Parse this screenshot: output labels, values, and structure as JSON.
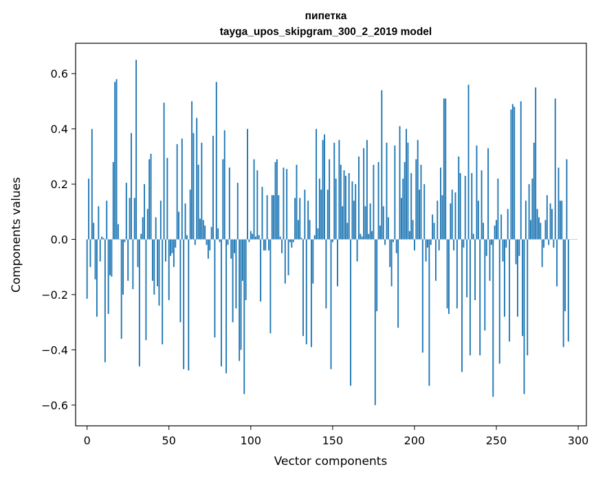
{
  "chart_data": {
    "type": "bar",
    "title": "пипетка",
    "subtitle": "tayga_upos_skipgram_300_2_2019 model",
    "xlabel": "Vector components",
    "ylabel": "Components values",
    "xlim": [
      -7,
      305
    ],
    "ylim": [
      -0.675,
      0.71
    ],
    "xticks": [
      0,
      50,
      100,
      150,
      200,
      250,
      300
    ],
    "xtick_labels": [
      "0",
      "50",
      "100",
      "150",
      "200",
      "250",
      "300"
    ],
    "yticks": [
      -0.6,
      -0.4,
      -0.2,
      0.0,
      0.2,
      0.4,
      0.6
    ],
    "ytick_labels": [
      "−0.6",
      "−0.4",
      "−0.2",
      "0.0",
      "0.2",
      "0.4",
      "0.6"
    ],
    "grid": false,
    "bar_color": "#1f77b4",
    "x": "integers 0 to 299 (component index)",
    "values": [
      -0.215,
      0.22,
      -0.1,
      0.4,
      0.06,
      -0.145,
      -0.28,
      0.12,
      -0.08,
      0.01,
      0.005,
      -0.445,
      0.14,
      -0.27,
      -0.13,
      -0.135,
      0.28,
      0.57,
      0.58,
      0.055,
      0.0,
      -0.36,
      -0.2,
      -0.01,
      0.205,
      -0.15,
      0.15,
      0.385,
      -0.18,
      0.15,
      0.65,
      -0.1,
      -0.46,
      0.02,
      0.08,
      0.2,
      -0.365,
      0.11,
      0.29,
      0.31,
      -0.15,
      -0.2,
      0.08,
      -0.17,
      -0.24,
      0.14,
      -0.38,
      0.495,
      -0.08,
      0.295,
      -0.22,
      -0.06,
      -0.05,
      -0.1,
      -0.03,
      0.345,
      0.1,
      -0.3,
      0.365,
      -0.47,
      0.13,
      0.015,
      -0.475,
      0.18,
      0.5,
      0.385,
      -0.02,
      0.44,
      0.27,
      0.075,
      0.35,
      0.07,
      0.05,
      -0.02,
      -0.07,
      -0.04,
      0.045,
      0.375,
      -0.355,
      0.57,
      0.04,
      -0.01,
      -0.46,
      0.29,
      0.395,
      -0.485,
      -0.02,
      0.26,
      -0.07,
      -0.3,
      -0.05,
      -0.25,
      0.205,
      -0.44,
      -0.4,
      -0.15,
      -0.56,
      -0.22,
      0.4,
      -0.01,
      0.03,
      0.02,
      0.29,
      0.01,
      0.25,
      0.015,
      -0.225,
      0.19,
      -0.04,
      -0.04,
      0.16,
      -0.04,
      -0.34,
      0.16,
      0.16,
      0.28,
      0.29,
      0.16,
      0.01,
      -0.05,
      0.26,
      -0.16,
      0.255,
      -0.13,
      -0.01,
      -0.03,
      -0.01,
      0.15,
      0.27,
      0.07,
      0.15,
      0.005,
      -0.35,
      0.18,
      -0.38,
      0.14,
      0.07,
      -0.39,
      -0.16,
      0.015,
      0.4,
      0.04,
      0.22,
      0.18,
      0.36,
      0.38,
      -0.25,
      0.18,
      0.29,
      -0.47,
      -0.01,
      0.35,
      0.22,
      -0.17,
      0.36,
      0.27,
      0.12,
      0.25,
      0.23,
      0.06,
      0.24,
      -0.53,
      0.21,
      0.14,
      0.2,
      -0.08,
      0.3,
      0.02,
      0.01,
      0.33,
      0.12,
      0.36,
      0.02,
      0.13,
      0.03,
      0.27,
      -0.6,
      -0.26,
      0.28,
      0.05,
      0.54,
      0.12,
      -0.02,
      0.35,
      0.08,
      -0.1,
      -0.17,
      -0.01,
      0.34,
      -0.05,
      -0.32,
      0.41,
      0.15,
      0.22,
      0.28,
      0.4,
      0.35,
      0.03,
      0.24,
      0.07,
      -0.04,
      0.29,
      0.36,
      0.18,
      0.27,
      -0.41,
      0.2,
      -0.08,
      -0.03,
      -0.53,
      -0.02,
      0.09,
      0.06,
      -0.15,
      0.14,
      -0.04,
      0.26,
      0.16,
      0.51,
      0.51,
      -0.25,
      -0.27,
      0.13,
      0.18,
      -0.04,
      0.17,
      -0.25,
      0.3,
      0.24,
      -0.48,
      -0.03,
      0.23,
      -0.21,
      0.56,
      -0.42,
      0.24,
      0.02,
      -0.22,
      0.34,
      0.14,
      -0.42,
      0.25,
      0.06,
      -0.33,
      -0.06,
      0.33,
      -0.15,
      -0.02,
      -0.57,
      0.05,
      0.07,
      0.22,
      -0.45,
      0.09,
      -0.08,
      -0.28,
      -0.03,
      0.11,
      -0.37,
      0.47,
      0.49,
      0.48,
      -0.09,
      -0.28,
      -0.06,
      0.5,
      -0.35,
      -0.56,
      0.14,
      -0.42,
      0.2,
      0.07,
      0.22,
      0.35,
      0.55,
      0.11,
      0.08,
      0.06,
      -0.1,
      -0.03,
      0.07,
      0.16,
      -0.02,
      0.13,
      0.11,
      -0.03,
      0.51,
      -0.17,
      0.26,
      0.14,
      0.14,
      -0.39,
      -0.26,
      0.29,
      -0.37,
      0.0,
      0.0,
      0.0,
      0.0,
      0.0
    ]
  }
}
